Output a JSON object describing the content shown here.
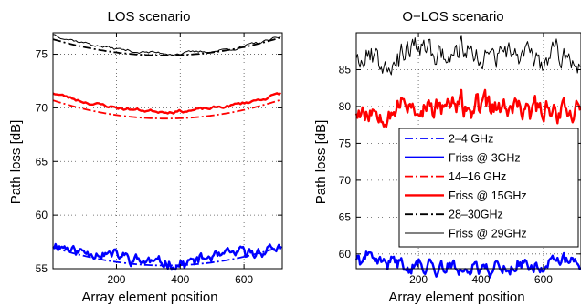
{
  "figure": {
    "ylabel": "Path loss [dB]",
    "xlabel": "Array element position"
  },
  "legend": {
    "placement": "right",
    "entries": [
      {
        "label": "2–4 GHz",
        "color": "#0000ff",
        "style": "dashdot",
        "weight": "normal"
      },
      {
        "label": "Friss @ 3GHz",
        "color": "#0000ff",
        "style": "solid",
        "weight": "thick"
      },
      {
        "label": "14–16 GHz",
        "color": "#ff0000",
        "style": "dashdot",
        "weight": "normal"
      },
      {
        "label": "Friss @ 15GHz",
        "color": "#ff0000",
        "style": "solid",
        "weight": "thick"
      },
      {
        "label": "28–30GHz",
        "color": "#000000",
        "style": "dashdot",
        "weight": "normal"
      },
      {
        "label": "Friss @ 29GHz",
        "color": "#000000",
        "style": "solid",
        "weight": "thin"
      }
    ]
  },
  "chart_data": [
    {
      "type": "line",
      "title": "LOS scenario",
      "xlabel": "Array element position",
      "ylabel": "Path loss [dB]",
      "xlim": [
        1,
        720
      ],
      "ylim": [
        55,
        77
      ],
      "xticks": [
        200,
        400,
        600
      ],
      "yticks": [
        55,
        60,
        65,
        70,
        75
      ],
      "grid": "dotted",
      "series": [
        {
          "label_ref": "2–4 GHz",
          "color": "#0000ff",
          "style": "dashdot",
          "kind": "smooth",
          "x": [
            1,
            360,
            720
          ],
          "y": [
            57.0,
            55.3,
            57.1
          ]
        },
        {
          "label_ref": "Friss @ 3GHz",
          "color": "#0000ff",
          "style": "solid",
          "kind": "noisy",
          "amp": 0.4,
          "seed": 11,
          "x": [
            1,
            100,
            380,
            600,
            720
          ],
          "y": [
            57.3,
            56.6,
            55.5,
            56.4,
            57.0
          ]
        },
        {
          "label_ref": "14–16 GHz",
          "color": "#ff0000",
          "style": "dashdot",
          "kind": "smooth",
          "x": [
            1,
            360,
            720
          ],
          "y": [
            70.7,
            69.0,
            70.8
          ]
        },
        {
          "label_ref": "Friss @ 15GHz",
          "color": "#ff0000",
          "style": "solid",
          "kind": "wavy",
          "amp": 0.12,
          "seed": 23,
          "x": [
            1,
            380,
            720
          ],
          "y": [
            71.4,
            69.7,
            71.4
          ]
        },
        {
          "label_ref": "28–30GHz",
          "color": "#000000",
          "style": "dashdot",
          "kind": "smooth",
          "x": [
            1,
            380,
            720
          ],
          "y": [
            76.4,
            74.9,
            76.6
          ]
        },
        {
          "label_ref": "Friss @ 29GHz",
          "color": "#000000",
          "style": "solid",
          "kind": "wavy",
          "amp": 0.12,
          "seed": 37,
          "x": [
            1,
            380,
            720
          ],
          "y": [
            76.9,
            75.1,
            76.6
          ]
        }
      ]
    },
    {
      "type": "line",
      "title": "O−LOS scenario",
      "xlabel": "Array element position",
      "ylabel": "Path loss [dB]",
      "xlim": [
        1,
        720
      ],
      "ylim": [
        58,
        90
      ],
      "xticks": [
        200,
        400,
        600
      ],
      "yticks": [
        60,
        65,
        70,
        75,
        80,
        85
      ],
      "grid": "dotted",
      "series": [
        {
          "label_ref": "Friss @ 3GHz",
          "color": "#0000ff",
          "style": "solid",
          "kind": "noisy",
          "amp": 0.8,
          "seed": 41,
          "x": [
            1,
            360,
            720
          ],
          "y": [
            59.3,
            58.2,
            59.0
          ]
        },
        {
          "label_ref": "Friss @ 15GHz",
          "color": "#ff0000",
          "style": "solid",
          "kind": "noisy",
          "amp": 1.3,
          "seed": 53,
          "x": [
            1,
            360,
            720
          ],
          "y": [
            80.0,
            79.8,
            79.9
          ]
        },
        {
          "label_ref": "Friss @ 29GHz",
          "color": "#000000",
          "style": "solid",
          "kind": "noisy",
          "amp": 1.4,
          "seed": 67,
          "x": [
            1,
            360,
            720
          ],
          "y": [
            87.3,
            87.0,
            86.8
          ]
        }
      ]
    }
  ]
}
